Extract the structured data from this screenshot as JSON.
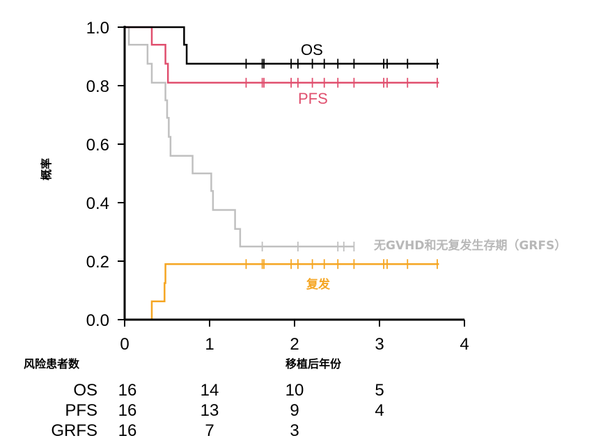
{
  "chart_data": {
    "type": "line",
    "subtype": "kaplan-meier-step",
    "xlabel": "移植后年份",
    "ylabel": "概率",
    "xlim": [
      0,
      4
    ],
    "ylim": [
      0,
      1
    ],
    "xticks": [
      "0",
      "1",
      "2",
      "3",
      "4"
    ],
    "yticks": [
      "0.0",
      "0.2",
      "0.4",
      "0.6",
      "0.8",
      "1.0"
    ],
    "grid": false,
    "series": [
      {
        "name": "OS",
        "color": "#000000",
        "steps": [
          [
            0,
            1.0
          ],
          [
            0.7,
            1.0
          ],
          [
            0.7,
            0.94
          ],
          [
            0.73,
            0.94
          ],
          [
            0.73,
            0.875
          ],
          [
            3.7,
            0.875
          ]
        ],
        "censor_x": [
          1.43,
          1.62,
          1.64,
          1.96,
          2.04,
          2.21,
          2.35,
          2.51,
          2.7,
          3.05,
          3.09,
          3.33,
          3.68
        ]
      },
      {
        "name": "PFS",
        "color": "#e0506f",
        "steps": [
          [
            0,
            1.0
          ],
          [
            0.32,
            1.0
          ],
          [
            0.32,
            0.94
          ],
          [
            0.48,
            0.94
          ],
          [
            0.48,
            0.875
          ],
          [
            0.51,
            0.875
          ],
          [
            0.51,
            0.81
          ],
          [
            3.7,
            0.81
          ]
        ],
        "censor_x": [
          1.43,
          1.62,
          1.64,
          1.96,
          2.04,
          2.21,
          2.35,
          2.51,
          2.7,
          3.05,
          3.09,
          3.33,
          3.68
        ]
      },
      {
        "name": "无GVHD和无复发生存期（GRFS）",
        "color": "#c0c0c0",
        "steps": [
          [
            0,
            1.0
          ],
          [
            0.05,
            1.0
          ],
          [
            0.05,
            0.94
          ],
          [
            0.27,
            0.94
          ],
          [
            0.27,
            0.875
          ],
          [
            0.32,
            0.875
          ],
          [
            0.32,
            0.81
          ],
          [
            0.48,
            0.81
          ],
          [
            0.48,
            0.75
          ],
          [
            0.5,
            0.75
          ],
          [
            0.5,
            0.69
          ],
          [
            0.52,
            0.69
          ],
          [
            0.52,
            0.625
          ],
          [
            0.54,
            0.625
          ],
          [
            0.54,
            0.56
          ],
          [
            0.8,
            0.56
          ],
          [
            0.8,
            0.5
          ],
          [
            1.02,
            0.5
          ],
          [
            1.02,
            0.44
          ],
          [
            1.04,
            0.44
          ],
          [
            1.04,
            0.375
          ],
          [
            1.3,
            0.375
          ],
          [
            1.3,
            0.31
          ],
          [
            1.36,
            0.31
          ],
          [
            1.36,
            0.25
          ],
          [
            2.7,
            0.25
          ]
        ],
        "censor_x": [
          1.62,
          2.04,
          2.51,
          2.58,
          2.7
        ]
      },
      {
        "name": "复发",
        "color": "#f5a623",
        "steps": [
          [
            0,
            0.0
          ],
          [
            0.32,
            0.0
          ],
          [
            0.32,
            0.0625
          ],
          [
            0.47,
            0.0625
          ],
          [
            0.47,
            0.125
          ],
          [
            0.48,
            0.125
          ],
          [
            0.48,
            0.19
          ],
          [
            3.7,
            0.19
          ]
        ],
        "censor_x": [
          1.43,
          1.62,
          1.64,
          1.96,
          2.04,
          2.21,
          2.35,
          2.51,
          2.7,
          3.05,
          3.09,
          3.33,
          3.68
        ]
      }
    ],
    "series_labels": [
      {
        "text": "OS",
        "color": "#000000"
      },
      {
        "text": "PFS",
        "color": "#e0506f"
      },
      {
        "text": "无GVHD和无复发生存期（GRFS）",
        "color": "#b8b8b8"
      },
      {
        "text": "复发",
        "color": "#f5a623"
      }
    ]
  },
  "risk_table": {
    "title": "风险患者数",
    "rows": [
      {
        "label": "OS",
        "counts": [
          "16",
          "14",
          "10",
          "5"
        ]
      },
      {
        "label": "PFS",
        "counts": [
          "16",
          "13",
          "9",
          "4"
        ]
      },
      {
        "label": "GRFS",
        "counts": [
          "16",
          "7",
          "3",
          ""
        ]
      }
    ]
  }
}
